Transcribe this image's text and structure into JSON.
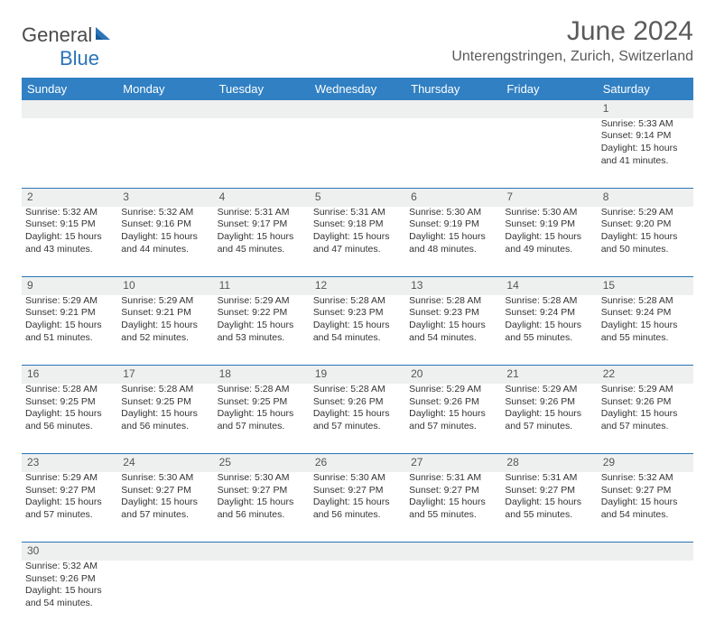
{
  "brand": {
    "name1": "General",
    "name2": "Blue"
  },
  "title": "June 2024",
  "location": "Unterengstringen, Zurich, Switzerland",
  "colors": {
    "header_bg": "#3080c3",
    "header_fg": "#ffffff",
    "rule": "#2a74b8",
    "daynum_bg": "#eef0f0",
    "text": "#333333",
    "title_color": "#5a5a5a"
  },
  "weekdays": [
    "Sunday",
    "Monday",
    "Tuesday",
    "Wednesday",
    "Thursday",
    "Friday",
    "Saturday"
  ],
  "weeks": [
    [
      null,
      null,
      null,
      null,
      null,
      null,
      {
        "n": "1",
        "sr": "Sunrise: 5:33 AM",
        "ss": "Sunset: 9:14 PM",
        "dl": "Daylight: 15 hours and 41 minutes."
      }
    ],
    [
      {
        "n": "2",
        "sr": "Sunrise: 5:32 AM",
        "ss": "Sunset: 9:15 PM",
        "dl": "Daylight: 15 hours and 43 minutes."
      },
      {
        "n": "3",
        "sr": "Sunrise: 5:32 AM",
        "ss": "Sunset: 9:16 PM",
        "dl": "Daylight: 15 hours and 44 minutes."
      },
      {
        "n": "4",
        "sr": "Sunrise: 5:31 AM",
        "ss": "Sunset: 9:17 PM",
        "dl": "Daylight: 15 hours and 45 minutes."
      },
      {
        "n": "5",
        "sr": "Sunrise: 5:31 AM",
        "ss": "Sunset: 9:18 PM",
        "dl": "Daylight: 15 hours and 47 minutes."
      },
      {
        "n": "6",
        "sr": "Sunrise: 5:30 AM",
        "ss": "Sunset: 9:19 PM",
        "dl": "Daylight: 15 hours and 48 minutes."
      },
      {
        "n": "7",
        "sr": "Sunrise: 5:30 AM",
        "ss": "Sunset: 9:19 PM",
        "dl": "Daylight: 15 hours and 49 minutes."
      },
      {
        "n": "8",
        "sr": "Sunrise: 5:29 AM",
        "ss": "Sunset: 9:20 PM",
        "dl": "Daylight: 15 hours and 50 minutes."
      }
    ],
    [
      {
        "n": "9",
        "sr": "Sunrise: 5:29 AM",
        "ss": "Sunset: 9:21 PM",
        "dl": "Daylight: 15 hours and 51 minutes."
      },
      {
        "n": "10",
        "sr": "Sunrise: 5:29 AM",
        "ss": "Sunset: 9:21 PM",
        "dl": "Daylight: 15 hours and 52 minutes."
      },
      {
        "n": "11",
        "sr": "Sunrise: 5:29 AM",
        "ss": "Sunset: 9:22 PM",
        "dl": "Daylight: 15 hours and 53 minutes."
      },
      {
        "n": "12",
        "sr": "Sunrise: 5:28 AM",
        "ss": "Sunset: 9:23 PM",
        "dl": "Daylight: 15 hours and 54 minutes."
      },
      {
        "n": "13",
        "sr": "Sunrise: 5:28 AM",
        "ss": "Sunset: 9:23 PM",
        "dl": "Daylight: 15 hours and 54 minutes."
      },
      {
        "n": "14",
        "sr": "Sunrise: 5:28 AM",
        "ss": "Sunset: 9:24 PM",
        "dl": "Daylight: 15 hours and 55 minutes."
      },
      {
        "n": "15",
        "sr": "Sunrise: 5:28 AM",
        "ss": "Sunset: 9:24 PM",
        "dl": "Daylight: 15 hours and 55 minutes."
      }
    ],
    [
      {
        "n": "16",
        "sr": "Sunrise: 5:28 AM",
        "ss": "Sunset: 9:25 PM",
        "dl": "Daylight: 15 hours and 56 minutes."
      },
      {
        "n": "17",
        "sr": "Sunrise: 5:28 AM",
        "ss": "Sunset: 9:25 PM",
        "dl": "Daylight: 15 hours and 56 minutes."
      },
      {
        "n": "18",
        "sr": "Sunrise: 5:28 AM",
        "ss": "Sunset: 9:25 PM",
        "dl": "Daylight: 15 hours and 57 minutes."
      },
      {
        "n": "19",
        "sr": "Sunrise: 5:28 AM",
        "ss": "Sunset: 9:26 PM",
        "dl": "Daylight: 15 hours and 57 minutes."
      },
      {
        "n": "20",
        "sr": "Sunrise: 5:29 AM",
        "ss": "Sunset: 9:26 PM",
        "dl": "Daylight: 15 hours and 57 minutes."
      },
      {
        "n": "21",
        "sr": "Sunrise: 5:29 AM",
        "ss": "Sunset: 9:26 PM",
        "dl": "Daylight: 15 hours and 57 minutes."
      },
      {
        "n": "22",
        "sr": "Sunrise: 5:29 AM",
        "ss": "Sunset: 9:26 PM",
        "dl": "Daylight: 15 hours and 57 minutes."
      }
    ],
    [
      {
        "n": "23",
        "sr": "Sunrise: 5:29 AM",
        "ss": "Sunset: 9:27 PM",
        "dl": "Daylight: 15 hours and 57 minutes."
      },
      {
        "n": "24",
        "sr": "Sunrise: 5:30 AM",
        "ss": "Sunset: 9:27 PM",
        "dl": "Daylight: 15 hours and 57 minutes."
      },
      {
        "n": "25",
        "sr": "Sunrise: 5:30 AM",
        "ss": "Sunset: 9:27 PM",
        "dl": "Daylight: 15 hours and 56 minutes."
      },
      {
        "n": "26",
        "sr": "Sunrise: 5:30 AM",
        "ss": "Sunset: 9:27 PM",
        "dl": "Daylight: 15 hours and 56 minutes."
      },
      {
        "n": "27",
        "sr": "Sunrise: 5:31 AM",
        "ss": "Sunset: 9:27 PM",
        "dl": "Daylight: 15 hours and 55 minutes."
      },
      {
        "n": "28",
        "sr": "Sunrise: 5:31 AM",
        "ss": "Sunset: 9:27 PM",
        "dl": "Daylight: 15 hours and 55 minutes."
      },
      {
        "n": "29",
        "sr": "Sunrise: 5:32 AM",
        "ss": "Sunset: 9:27 PM",
        "dl": "Daylight: 15 hours and 54 minutes."
      }
    ],
    [
      {
        "n": "30",
        "sr": "Sunrise: 5:32 AM",
        "ss": "Sunset: 9:26 PM",
        "dl": "Daylight: 15 hours and 54 minutes."
      },
      null,
      null,
      null,
      null,
      null,
      null
    ]
  ]
}
